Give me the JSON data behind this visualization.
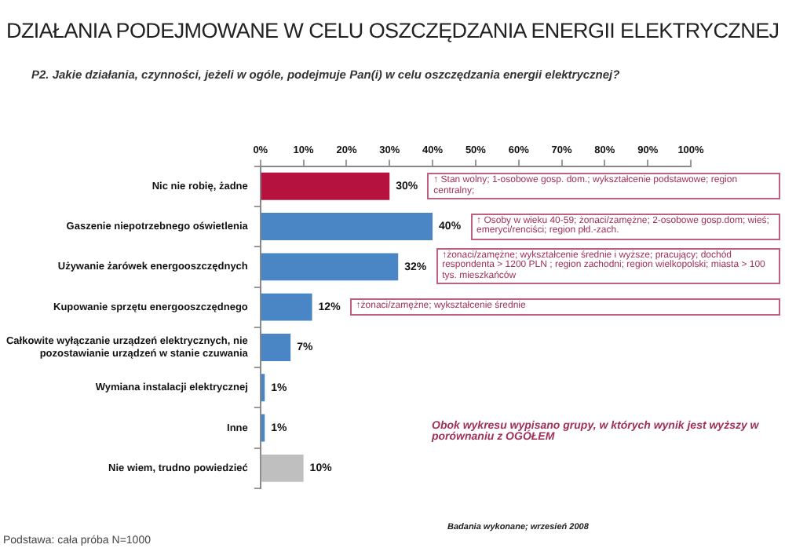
{
  "chart_data": {
    "type": "bar",
    "orientation": "horizontal",
    "title": "DZIAŁANIA PODEJMOWANE W CELU OSZCZĘDZANIA ENERGII ELEKTRYCZNEJ",
    "subtitle": "P2. Jakie działania, czynności, jeżeli w ogóle, podejmuje Pan(i) w celu oszczędzania energii elektrycznej?",
    "categories": [
      "Nic nie robię, żadne",
      "Gaszenie niepotrzebnego oświetlenia",
      "Używanie żarówek energooszczędnych",
      "Kupowanie sprzętu energooszczędnego",
      "Całkowite wyłączanie urządzeń elektrycznych, nie pozostawianie urządzeń w stanie czuwania",
      "Wymiana instalacji elektrycznej",
      "Inne",
      "Nie wiem, trudno powiedzieć"
    ],
    "values": [
      30,
      40,
      32,
      12,
      7,
      1,
      1,
      10
    ],
    "value_labels": [
      "30%",
      "40%",
      "32%",
      "12%",
      "7%",
      "1%",
      "1%",
      "10%"
    ],
    "colors": [
      "#b5123f",
      "#4a86c5",
      "#4a86c5",
      "#4a86c5",
      "#4a86c5",
      "#4a86c5",
      "#4a86c5",
      "#bfbfbf"
    ],
    "xlim": [
      0,
      100
    ],
    "xticks": [
      {
        "value": 0,
        "label": "0%"
      },
      {
        "value": 10,
        "label": "10%"
      },
      {
        "value": 20,
        "label": "20%"
      },
      {
        "value": 30,
        "label": "30%"
      },
      {
        "value": 40,
        "label": "40%"
      },
      {
        "value": 50,
        "label": "50%"
      },
      {
        "value": 60,
        "label": "60%"
      },
      {
        "value": 70,
        "label": "70%"
      },
      {
        "value": 80,
        "label": "80%"
      },
      {
        "value": 90,
        "label": "90%"
      },
      {
        "value": 100,
        "label": "100%"
      }
    ],
    "grid": false,
    "annotations": [
      "↑ Stan wolny; 1-osobowe gosp. dom.; wykształcenie podstawowe; region centralny;",
      "↑ Osoby w wieku 40-59; żonaci/zamężne; 2-osobowe gosp.dom; wieś; emeryci/renciści; region płd.-zach.",
      "↑żonaci/zamężne; wykształcenie średnie i wyższe; pracujący; dochód respondenta > 1200 PLN ; region zachodni; region wielkopolski; miasta > 100 tys. mieszkańców",
      "↑żonaci/zamężne; wykształcenie średnie",
      "Obok wykresu wypisano grupy, w których wynik jest wyższy w porównaniu z OGÓŁEM",
      "Podstawa: cała próba N=1000",
      "Badania wykonane; wrzesień 2008"
    ]
  }
}
